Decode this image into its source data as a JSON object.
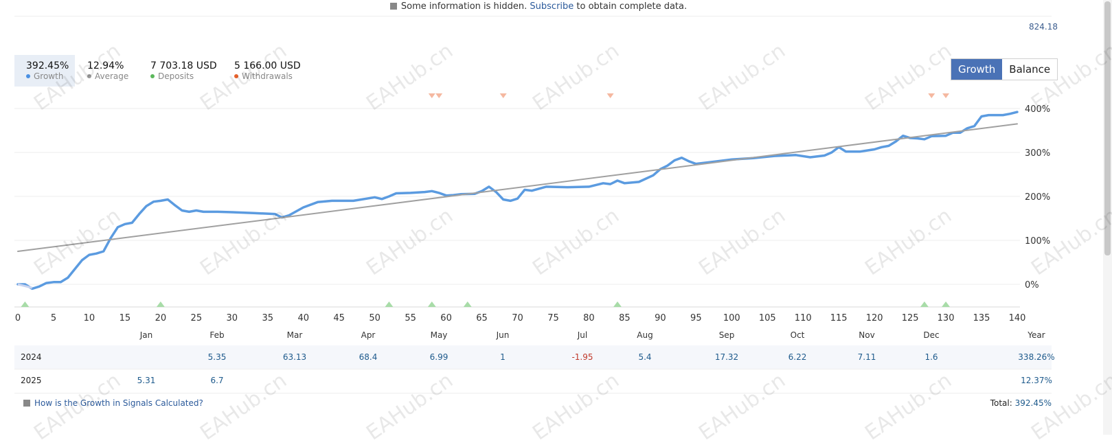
{
  "notice": {
    "pre": "Some information is hidden.",
    "link": "Subscribe",
    "post": "to obtain complete data."
  },
  "max_value": "824.18",
  "stats": [
    {
      "value": "392.45%",
      "label": "Growth",
      "color": "#4a90e2"
    },
    {
      "value": "12.94%",
      "label": "Average",
      "color": "#999999"
    },
    {
      "value": "7 703.18 USD",
      "label": "Deposits",
      "color": "#5cb85c"
    },
    {
      "value": "5 166.00 USD",
      "label": "Withdrawals",
      "color": "#e8622c"
    }
  ],
  "toggle": {
    "growth": "Growth",
    "balance": "Balance"
  },
  "chart_data": {
    "type": "line",
    "x_ticks": [
      "0",
      "5",
      "10",
      "15",
      "20",
      "25",
      "30",
      "35",
      "40",
      "45",
      "50",
      "55",
      "60",
      "65",
      "70",
      "75",
      "80",
      "85",
      "90",
      "95",
      "100",
      "105",
      "110",
      "115",
      "120",
      "125",
      "130",
      "135",
      "140"
    ],
    "y_ticks": [
      "0%",
      "100%",
      "200%",
      "300%",
      "400%"
    ],
    "xlim": [
      0,
      140
    ],
    "ylim": [
      -50,
      430
    ],
    "series": [
      {
        "color": "#5b9be0",
        "points": [
          [
            0,
            0
          ],
          [
            1,
            0
          ],
          [
            2,
            -10
          ],
          [
            3,
            -5
          ],
          [
            4,
            3
          ],
          [
            5,
            5
          ],
          [
            6,
            5
          ],
          [
            7,
            15
          ],
          [
            8,
            35
          ],
          [
            9,
            55
          ],
          [
            10,
            67
          ],
          [
            11,
            70
          ],
          [
            12,
            75
          ],
          [
            13,
            105
          ],
          [
            14,
            130
          ],
          [
            15,
            137
          ],
          [
            16,
            140
          ],
          [
            17,
            160
          ],
          [
            18,
            178
          ],
          [
            19,
            188
          ],
          [
            20,
            190
          ],
          [
            21,
            193
          ],
          [
            22,
            180
          ],
          [
            23,
            168
          ],
          [
            24,
            165
          ],
          [
            25,
            168
          ],
          [
            26,
            165
          ],
          [
            28,
            165
          ],
          [
            30,
            164
          ],
          [
            33,
            162
          ],
          [
            36,
            160
          ],
          [
            37,
            152
          ],
          [
            38,
            157
          ],
          [
            40,
            175
          ],
          [
            42,
            187
          ],
          [
            44,
            190
          ],
          [
            47,
            190
          ],
          [
            50,
            198
          ],
          [
            51,
            194
          ],
          [
            52,
            200
          ],
          [
            53,
            207
          ],
          [
            55,
            208
          ],
          [
            57,
            210
          ],
          [
            58,
            212
          ],
          [
            59,
            208
          ],
          [
            60,
            202
          ],
          [
            61,
            203
          ],
          [
            62,
            205
          ],
          [
            64,
            206
          ],
          [
            65,
            212
          ],
          [
            66,
            222
          ],
          [
            67,
            210
          ],
          [
            68,
            193
          ],
          [
            69,
            190
          ],
          [
            70,
            195
          ],
          [
            71,
            215
          ],
          [
            72,
            213
          ],
          [
            74,
            222
          ],
          [
            77,
            221
          ],
          [
            80,
            222
          ],
          [
            82,
            230
          ],
          [
            83,
            228
          ],
          [
            84,
            236
          ],
          [
            85,
            230
          ],
          [
            87,
            233
          ],
          [
            89,
            248
          ],
          [
            90,
            262
          ],
          [
            91,
            270
          ],
          [
            92,
            282
          ],
          [
            93,
            288
          ],
          [
            94,
            280
          ],
          [
            95,
            274
          ],
          [
            97,
            278
          ],
          [
            100,
            284
          ],
          [
            103,
            287
          ],
          [
            106,
            292
          ],
          [
            109,
            294
          ],
          [
            111,
            289
          ],
          [
            113,
            293
          ],
          [
            114,
            300
          ],
          [
            115,
            312
          ],
          [
            116,
            302
          ],
          [
            118,
            302
          ],
          [
            120,
            307
          ],
          [
            121,
            312
          ],
          [
            122,
            315
          ],
          [
            123,
            325
          ],
          [
            124,
            338
          ],
          [
            125,
            333
          ],
          [
            126,
            332
          ],
          [
            127,
            330
          ],
          [
            128,
            337
          ],
          [
            130,
            338
          ],
          [
            131,
            345
          ],
          [
            132,
            345
          ],
          [
            133,
            355
          ],
          [
            134,
            360
          ],
          [
            135,
            382
          ],
          [
            136,
            385
          ],
          [
            138,
            385
          ],
          [
            139,
            388
          ],
          [
            140,
            392
          ]
        ]
      },
      {
        "color": "#a0a0a0",
        "points": [
          [
            0,
            75
          ],
          [
            140,
            365
          ]
        ]
      }
    ],
    "deposit_markers_x": [
      1,
      20,
      52,
      58,
      63,
      84,
      127,
      130
    ],
    "withdrawal_markers_x": [
      58,
      59,
      68,
      83,
      128,
      130
    ]
  },
  "months": [
    "Jan",
    "Feb",
    "Mar",
    "Apr",
    "May",
    "Jun",
    "Jul",
    "Aug",
    "Sep",
    "Oct",
    "Nov",
    "Dec",
    "Year"
  ],
  "years": [
    {
      "year": "2024",
      "values": [
        "",
        "5.35",
        "63.13",
        "68.4",
        "6.99",
        "1",
        "-1.95",
        "5.4",
        "17.32",
        "6.22",
        "7.11",
        "1.6",
        "338.26%"
      ]
    },
    {
      "year": "2025",
      "values": [
        "5.31",
        "6.7",
        "",
        "",
        "",
        "",
        "",
        "",
        "",
        "",
        "",
        "",
        "12.37%"
      ]
    }
  ],
  "footer": {
    "help": "How is the Growth in Signals Calculated?",
    "total_label": "Total:",
    "total_value": "392.45%"
  },
  "watermark": "EAHub.cn"
}
